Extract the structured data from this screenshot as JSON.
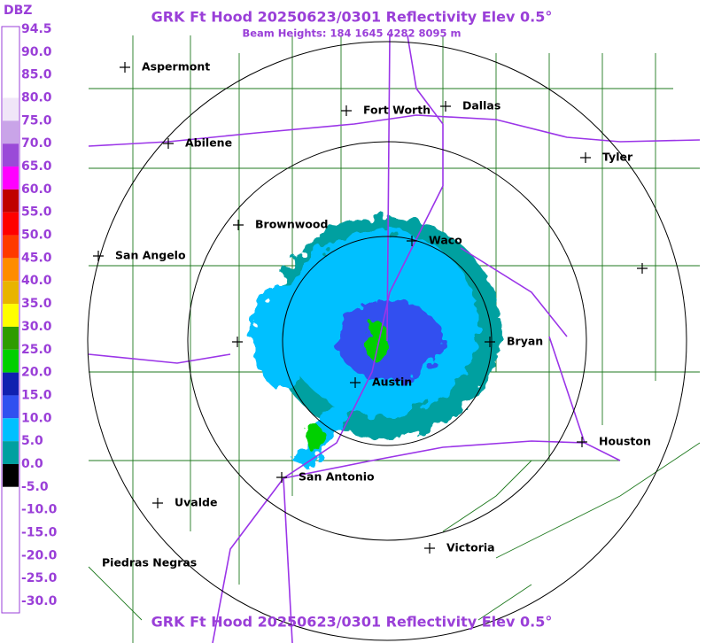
{
  "header": {
    "title": "GRK Ft Hood 20250623/0301 Reflectivity Elev 0.5°",
    "subtitle": "Beam Heights: 184 1645 4282 8095 m"
  },
  "footer": {
    "title": "GRK Ft Hood 20250623/0301 Reflectivity Elev 0.5°"
  },
  "legend": {
    "unit": "DBZ",
    "labels": [
      "94.5",
      "90.0",
      "85.0",
      "80.0",
      "75.0",
      "70.0",
      "65.0",
      "60.0",
      "55.0",
      "50.0",
      "45.0",
      "40.0",
      "35.0",
      "30.0",
      "25.0",
      "20.0",
      "15.0",
      "10.0",
      "5.0",
      "0.0",
      "-5.0",
      "-10.0",
      "-15.0",
      "-20.0",
      "-25.0",
      "-30.0"
    ],
    "colors": [
      "#ffffff",
      "#ffffff",
      "#ffffff",
      "#f0e6f8",
      "#c9a4e8",
      "#9a4ad8",
      "#ff00ff",
      "#c00000",
      "#ff0000",
      "#ff3a00",
      "#ff8c00",
      "#e8b400",
      "#ffff00",
      "#2e9c00",
      "#00d000",
      "#1020b0",
      "#3050f0",
      "#00c0ff",
      "#00a0a0",
      "#000000",
      "#ffffff",
      "#ffffff",
      "#ffffff",
      "#ffffff",
      "#ffffff"
    ]
  },
  "cities": [
    "Aspermont",
    "Fort Worth",
    "Dallas",
    "Abilene",
    "Tyler",
    "Brownwood",
    "Waco",
    "San Angelo",
    "Bryan",
    "Austin",
    "Houston",
    "San Antonio",
    "Uvalde",
    "Victoria",
    "Piedras Negras"
  ]
}
